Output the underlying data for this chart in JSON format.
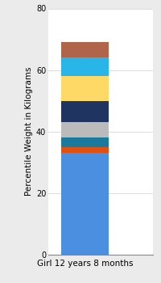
{
  "category": "Girl 12 years 8 months",
  "segments": [
    {
      "value": 33,
      "color": "#4A8FE0"
    },
    {
      "value": 2,
      "color": "#E05010"
    },
    {
      "value": 3,
      "color": "#1A7A9E"
    },
    {
      "value": 5,
      "color": "#BBBBBB"
    },
    {
      "value": 7,
      "color": "#1F3460"
    },
    {
      "value": 8,
      "color": "#FFD966"
    },
    {
      "value": 6,
      "color": "#29B5E8"
    },
    {
      "value": 5,
      "color": "#B0654A"
    }
  ],
  "ylabel": "Percentile Weight in Kilograms",
  "ylim": [
    0,
    80
  ],
  "yticks": [
    0,
    20,
    40,
    60,
    80
  ],
  "background_color": "#EBEBEB",
  "plot_bg_color": "#FFFFFF",
  "ylabel_fontsize": 7.5,
  "xlabel_fontsize": 7.5,
  "tick_fontsize": 7
}
